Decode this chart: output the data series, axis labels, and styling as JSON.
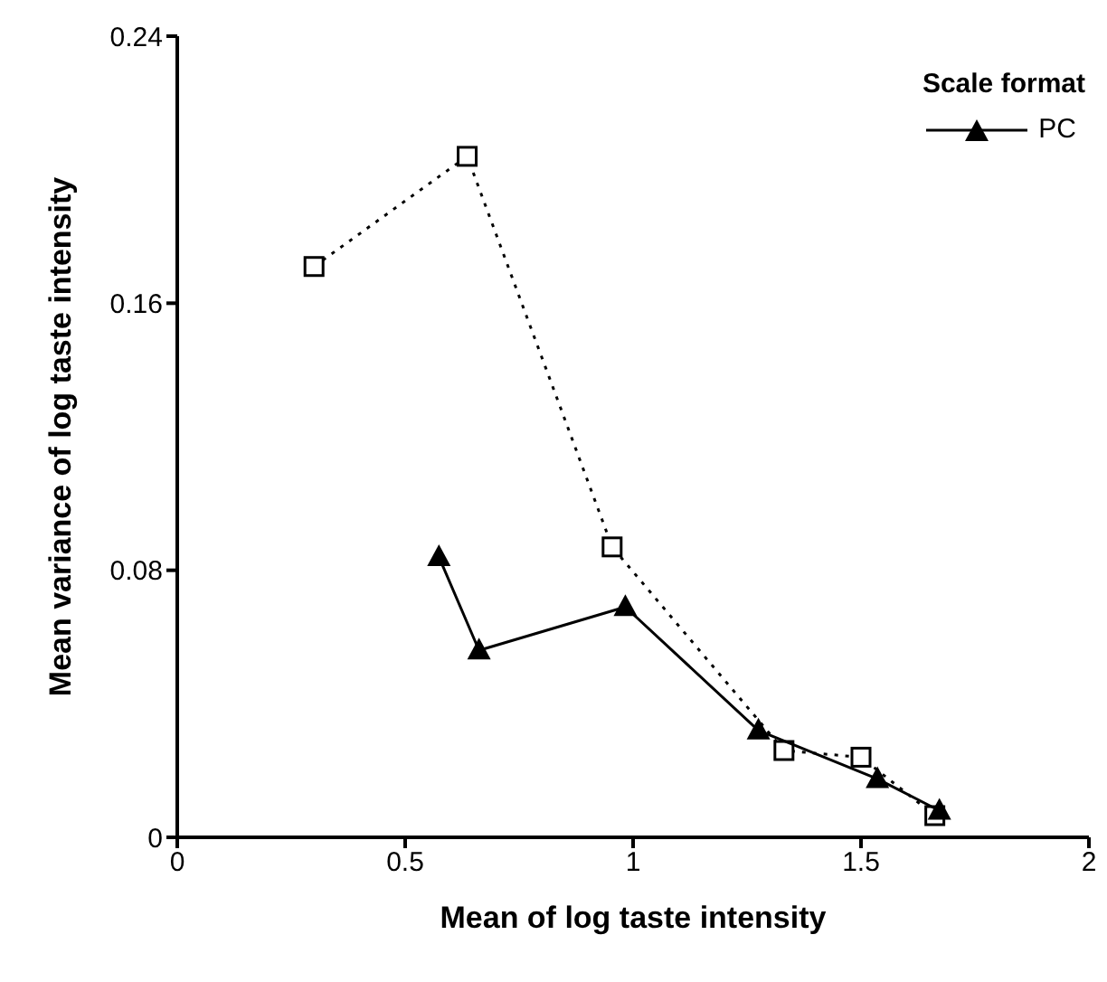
{
  "chart_data": {
    "type": "line",
    "xlabel": "Mean of log taste intensity",
    "ylabel": "Mean variance of log taste intensity",
    "legend_title": "Scale format",
    "legend": "top right",
    "grid": false,
    "xlim": [
      0,
      2
    ],
    "xticks": [
      0,
      0.5,
      1,
      1.5,
      2
    ],
    "ylim": [
      0,
      0.24
    ],
    "yticks": [
      0,
      0.08,
      0.16,
      0.24
    ],
    "series": [
      {
        "color": "#000000",
        "marker": "square",
        "line_style": "dotted",
        "x": [
          0.3,
          0.636,
          0.954,
          1.331,
          1.5,
          1.662
        ],
        "values": [
          0.171,
          0.204,
          0.087,
          0.026,
          0.024,
          0.0065
        ]
      },
      {
        "name": "PC",
        "color": "#000000",
        "marker": "triangle",
        "line_style": "solid",
        "x": [
          0.574,
          0.662,
          0.983,
          1.275,
          1.536,
          1.672
        ],
        "values": [
          0.084,
          0.056,
          0.069,
          0.032,
          0.0175,
          0.008
        ]
      }
    ]
  }
}
